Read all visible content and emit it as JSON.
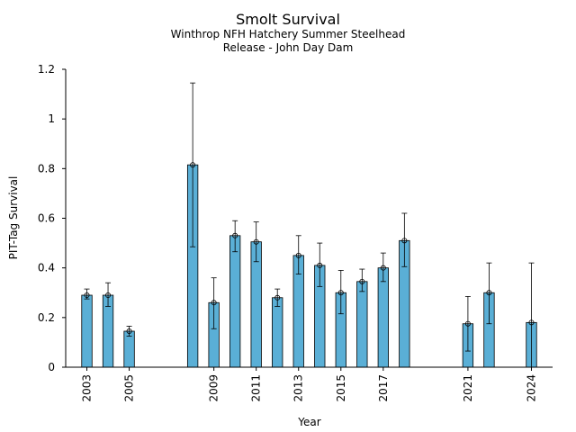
{
  "chart_data": {
    "type": "bar",
    "title": "Smolt Survival",
    "subtitle_lines": [
      "Winthrop NFH Hatchery Summer Steelhead",
      "Release - John Day Dam"
    ],
    "xlabel": "Year",
    "ylabel": "PIT-Tag Survival",
    "xlim": [
      2002,
      2025
    ],
    "ylim": [
      0,
      1.2
    ],
    "yticks": [
      0,
      0.2,
      0.4,
      0.6,
      0.8,
      1,
      1.2
    ],
    "ytick_labels": [
      "0",
      "0.2",
      "0.4",
      "0.6",
      "0.8",
      "1",
      "1.2"
    ],
    "xticks": [
      2003,
      2005,
      2009,
      2011,
      2013,
      2015,
      2017,
      2021,
      2024
    ],
    "xtick_labels": [
      "2003",
      "2005",
      "2009",
      "2011",
      "2013",
      "2015",
      "2017",
      "2021",
      "2024"
    ],
    "bar_color": "#5aafd6",
    "x": [
      2003,
      2004,
      2005,
      2008,
      2009,
      2010,
      2011,
      2012,
      2013,
      2014,
      2015,
      2016,
      2017,
      2018,
      2021,
      2022,
      2024
    ],
    "values": [
      0.29,
      0.29,
      0.145,
      0.815,
      0.26,
      0.53,
      0.505,
      0.28,
      0.45,
      0.41,
      0.3,
      0.345,
      0.4,
      0.51,
      0.175,
      0.3,
      0.18
    ],
    "err_low": [
      0.275,
      0.245,
      0.125,
      0.485,
      0.155,
      0.465,
      0.425,
      0.245,
      0.375,
      0.325,
      0.215,
      0.305,
      0.345,
      0.405,
      0.065,
      0.175,
      0.0
    ],
    "err_high": [
      0.315,
      0.34,
      0.165,
      1.145,
      0.36,
      0.59,
      0.585,
      0.315,
      0.53,
      0.5,
      0.39,
      0.395,
      0.46,
      0.62,
      0.285,
      0.42,
      0.42
    ],
    "grid": false,
    "legend": "none"
  }
}
